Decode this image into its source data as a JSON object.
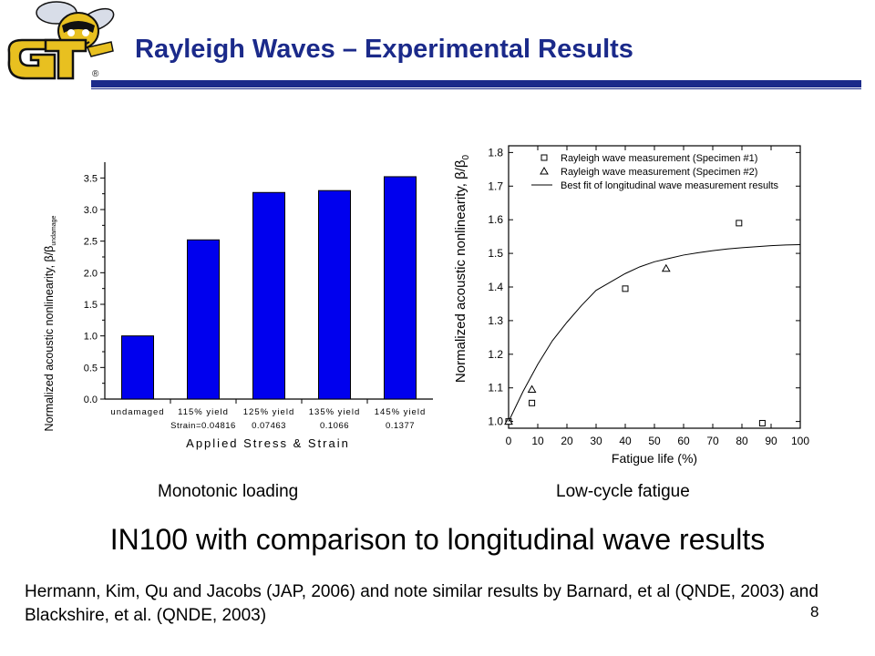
{
  "slide": {
    "title": "Rayleigh Waves – Experimental Results",
    "logo_text": "GT",
    "logo_mark": "®",
    "caption_left": "Monotonic  loading",
    "caption_right": "Low-cycle fatigue",
    "subtitle": "IN100 with comparison to longitudinal wave results",
    "reference": "Hermann, Kim, Qu and Jacobs (JAP, 2006) and note similar results by Barnard, et al (QNDE, 2003) and Blackshire, et al. (QNDE, 2003)",
    "page_number": "8"
  },
  "colors": {
    "title": "#1b2a8a",
    "bars": "#0000ee",
    "logo_gold": "#e8c020",
    "logo_dark": "#111111"
  },
  "chart_data": [
    {
      "type": "bar",
      "categories": [
        "undamaged",
        "115% yield",
        "125% yield",
        "135% yield",
        "145% yield"
      ],
      "strain_labels": [
        "Strain=0.04816",
        "0.07463",
        "0.1066",
        "0.1377"
      ],
      "values": [
        1.0,
        2.52,
        3.27,
        3.3,
        3.52
      ],
      "xlabel": "Applied Stress & Strain",
      "ylabel": "Normalized acoustic nonlinearity, β/β",
      "ylabel_sub": "undamage",
      "ylim": [
        0,
        3.75
      ],
      "yticks": [
        "0.0",
        "0.5",
        "1.0",
        "1.5",
        "2.0",
        "2.5",
        "3.0",
        "3.5"
      ],
      "ytick_values": [
        0,
        0.5,
        1.0,
        1.5,
        2.0,
        2.5,
        3.0,
        3.5
      ],
      "color": "#0000ee"
    },
    {
      "type": "scatter",
      "xlabel": "Fatigue life (%)",
      "ylabel": "Normalized acoustic nonlinearity, β/β",
      "ylabel_sub": "0",
      "xlim": [
        0,
        100
      ],
      "ylim": [
        0.98,
        1.82
      ],
      "xticks": [
        "0",
        "10",
        "20",
        "30",
        "40",
        "50",
        "60",
        "70",
        "80",
        "90",
        "100"
      ],
      "xtick_values": [
        0,
        10,
        20,
        30,
        40,
        50,
        60,
        70,
        80,
        90,
        100
      ],
      "yticks": [
        "1.0",
        "1.1",
        "1.2",
        "1.3",
        "1.4",
        "1.5",
        "1.6",
        "1.7",
        "1.8"
      ],
      "ytick_values": [
        1.0,
        1.1,
        1.2,
        1.3,
        1.4,
        1.5,
        1.6,
        1.7,
        1.8
      ],
      "legend_position": "top-left",
      "series": [
        {
          "name": "Rayleigh wave measurement (Specimen #1)",
          "marker": "square",
          "x": [
            0,
            8,
            40,
            79,
            87
          ],
          "y": [
            1.0,
            1.055,
            1.395,
            1.59,
            0.995
          ]
        },
        {
          "name": "Rayleigh wave measurement (Specimen #2)",
          "marker": "triangle",
          "x": [
            0,
            8,
            54
          ],
          "y": [
            1.0,
            1.095,
            1.455
          ]
        },
        {
          "name": "Best fit of longitudinal wave measurement results",
          "marker": "line",
          "x": [
            0,
            5,
            10,
            15,
            20,
            25,
            30,
            35,
            40,
            45,
            50,
            55,
            60,
            65,
            70,
            75,
            80,
            85,
            90,
            95,
            100
          ],
          "y": [
            1.0,
            1.09,
            1.17,
            1.24,
            1.295,
            1.345,
            1.39,
            1.415,
            1.44,
            1.46,
            1.475,
            1.485,
            1.495,
            1.502,
            1.508,
            1.513,
            1.517,
            1.52,
            1.523,
            1.525,
            1.526
          ]
        }
      ]
    }
  ]
}
